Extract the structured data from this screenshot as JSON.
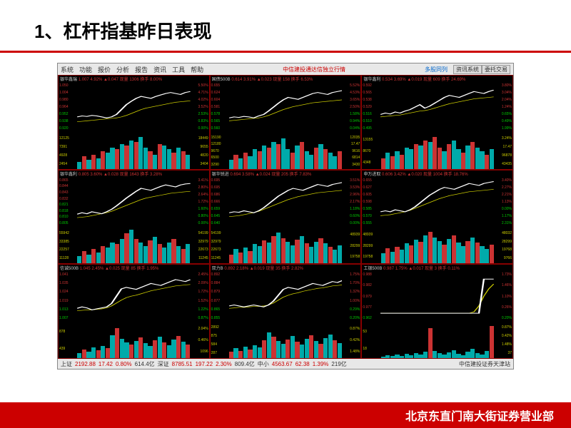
{
  "title": "1、杠杆指基昨日表现",
  "footer": "北京东直门南大街证券营业部",
  "menu": [
    "系统",
    "功能",
    "报价",
    "分析",
    "报告",
    "资讯",
    "工具",
    "帮助"
  ],
  "terminal_title": "中信建投通达信独立行情",
  "terminal_mode": "多股同列",
  "tabs": [
    "资讯系统",
    "委托交易"
  ],
  "station": "中信建投证券天津站",
  "status": [
    {
      "name": "上证",
      "val": "2192.88",
      "chg": "17.42",
      "pct": "0.80%",
      "vol": "614.4亿"
    },
    {
      "name": "深证",
      "val": "8785.51",
      "chg": "197.22",
      "pct": "2.30%",
      "vol": "809.4亿"
    },
    {
      "name": "中小",
      "val": "4563.67",
      "chg": "62.38",
      "pct": "1.39%",
      "vol": "219亿"
    }
  ],
  "colors": {
    "bg": "#000000",
    "grid_border": "#800000",
    "up": "#cc3333",
    "down": "#00cc00",
    "price_line": "#ffffff",
    "ma_line": "#cccc00",
    "vol_cyan": "#00aaaa",
    "vol_red": "#cc3333",
    "axis_text": "#cc3333",
    "vol_text": "#cccc00"
  },
  "charts": [
    {
      "name": "银华鑫瑞",
      "head": "银华鑫瑞 1.007 4.92% ▲0.047 现量 1306 换手 8.00%",
      "yleft": [
        "1.050",
        "1.004",
        "0.980",
        "0.964",
        "0.952",
        "0.938",
        "0.920"
      ],
      "yright": [
        "5.50%",
        "4.71%",
        "4.02%",
        "3.52%",
        "2.53%",
        "0.83%",
        "0.00%"
      ],
      "vol_left": [
        "12125",
        "7391",
        "4928",
        "2454"
      ],
      "vol_right": [
        "18449",
        "9655",
        "4820",
        "3404"
      ],
      "price": [
        30,
        32,
        31,
        33,
        32,
        30,
        28,
        30,
        35,
        45,
        55,
        62,
        68,
        72,
        70,
        68,
        72,
        75,
        78,
        80,
        78,
        76,
        80,
        82
      ],
      "ma": [
        20,
        21,
        22,
        23,
        24,
        25,
        26,
        27,
        28,
        30,
        33,
        37,
        41,
        45,
        48,
        50,
        52,
        54,
        56,
        58,
        60,
        61,
        62,
        63
      ],
      "vols": [
        20,
        35,
        25,
        40,
        30,
        50,
        45,
        60,
        55,
        70,
        65,
        80,
        75,
        90,
        60,
        50,
        40,
        70,
        65,
        55,
        45,
        60,
        50,
        40
      ],
      "vol_colors": [
        "c",
        "r",
        "c",
        "r",
        "c",
        "r",
        "c",
        "c",
        "r",
        "c",
        "r",
        "c",
        "r",
        "c",
        "c",
        "r",
        "c",
        "r",
        "c",
        "c",
        "r",
        "c",
        "r",
        "c"
      ]
    },
    {
      "name": "国债500B",
      "head": "国债500B 0.614 3.91% ▲0.023 现量 158 换手 6.53%",
      "yleft": [
        "0.655",
        "0.624",
        "0.604",
        "0.581",
        "0.578",
        "0.565",
        "0.560"
      ],
      "yright": [
        "5.52%",
        "4.53%",
        "3.65%",
        "2.50%",
        "1.58%",
        "0.94%",
        "0.04%"
      ],
      "vol_left": [
        "15190",
        "12180",
        "9670",
        "6500",
        "3290"
      ],
      "vol_right": [
        "12035",
        "17.47",
        "9616",
        "6814",
        "3430"
      ],
      "price": [
        28,
        30,
        29,
        31,
        30,
        28,
        32,
        35,
        42,
        50,
        58,
        65,
        70,
        68,
        66,
        70,
        74,
        78,
        80,
        78,
        76,
        80,
        82,
        84
      ],
      "ma": [
        22,
        23,
        24,
        25,
        26,
        27,
        28,
        30,
        33,
        37,
        41,
        45,
        48,
        51,
        53,
        55,
        57,
        59,
        60,
        61,
        62,
        63,
        64,
        65
      ],
      "vols": [
        25,
        40,
        30,
        45,
        35,
        55,
        50,
        65,
        60,
        75,
        70,
        85,
        55,
        45,
        65,
        75,
        50,
        40,
        60,
        70,
        55,
        45,
        35,
        50
      ],
      "vol_colors": [
        "c",
        "r",
        "c",
        "r",
        "c",
        "c",
        "r",
        "c",
        "r",
        "c",
        "r",
        "c",
        "c",
        "r",
        "c",
        "r",
        "c",
        "c",
        "r",
        "c",
        "r",
        "c",
        "c",
        "r"
      ]
    },
    {
      "name": "银华鑫利",
      "head": "银华鑫利 0.534 3.69% ▲0.019 现量 609 换手 24.69%",
      "yleft": [
        "0.592",
        "0.565",
        "0.538",
        "0.529",
        "0.516",
        "0.510",
        "0.495"
      ],
      "yright": [
        "3.80%",
        "3.04%",
        "2.04%",
        "1.24%",
        "0.65%",
        "0.49%",
        "1.99%"
      ],
      "vol_left": [
        "13155",
        "8670",
        "4348"
      ],
      "vol_right": [
        "3.24%",
        "17.47",
        "96878",
        "43435"
      ],
      "price": [
        35,
        38,
        36,
        40,
        38,
        42,
        45,
        50,
        55,
        48,
        52,
        58,
        64,
        70,
        74,
        72,
        70,
        74,
        78,
        82,
        80,
        78,
        82,
        85
      ],
      "ma": [
        30,
        31,
        32,
        33,
        34,
        36,
        38,
        40,
        42,
        43,
        45,
        48,
        51,
        54,
        57,
        59,
        61,
        63,
        65,
        67,
        68,
        69,
        70,
        71
      ],
      "vols": [
        30,
        45,
        35,
        50,
        40,
        60,
        55,
        70,
        65,
        80,
        75,
        90,
        60,
        50,
        70,
        80,
        55,
        45,
        65,
        75,
        60,
        50,
        40,
        55
      ],
      "vol_colors": [
        "r",
        "c",
        "r",
        "c",
        "r",
        "c",
        "c",
        "r",
        "c",
        "r",
        "c",
        "r",
        "r",
        "c",
        "r",
        "c",
        "c",
        "r",
        "c",
        "r",
        "c",
        "c",
        "r",
        "c"
      ]
    },
    {
      "name": "银华鑫利",
      "head": "银华鑫利 0.805 3.60% ▲0.028 现量 1643 换手 3.28%",
      "yleft": [
        "0.865",
        "0.844",
        "0.843",
        "0.832",
        "0.821",
        "0.818",
        "0.810",
        "0.805"
      ],
      "yright": [
        "3.41%",
        "2.80%",
        "2.64%",
        "1.72%",
        "1.60%",
        "0.80%",
        "0.00%"
      ],
      "vol_left": [
        "55942",
        "33385",
        "22257",
        "11128"
      ],
      "vol_right": [
        "54199",
        "32979",
        "22673",
        "11245"
      ],
      "price": [
        25,
        28,
        26,
        30,
        28,
        26,
        30,
        35,
        42,
        50,
        58,
        65,
        72,
        78,
        76,
        74,
        78,
        82,
        85,
        83,
        81,
        85,
        87,
        88
      ],
      "ma": [
        18,
        19,
        20,
        22,
        24,
        26,
        28,
        31,
        35,
        39,
        43,
        47,
        51,
        55,
        58,
        60,
        62,
        64,
        66,
        68,
        69,
        70,
        71,
        72
      ],
      "vols": [
        20,
        35,
        25,
        40,
        30,
        50,
        45,
        60,
        55,
        70,
        85,
        95,
        70,
        60,
        50,
        65,
        75,
        55,
        45,
        60,
        70,
        50,
        40,
        55
      ],
      "vol_colors": [
        "c",
        "r",
        "c",
        "r",
        "c",
        "r",
        "c",
        "c",
        "r",
        "c",
        "r",
        "c",
        "r",
        "c",
        "c",
        "r",
        "c",
        "r",
        "c",
        "c",
        "r",
        "c",
        "r",
        "c"
      ]
    },
    {
      "name": "银华锐进",
      "head": "银华锐进 0.694 3.58% ▲0.024 现量 205 换手 7.83%",
      "yleft": [
        "0.695",
        "0.695",
        "0.686",
        "0.666",
        "0.659",
        "0.645",
        "0.640"
      ],
      "yright": [
        "3.51%",
        "3.53%",
        "2.96%",
        "2.17%",
        "1.18%",
        "0.60%",
        "0.00%"
      ],
      "vol_left": [
        "54199",
        "32979",
        "22673",
        "11245"
      ],
      "vol_right": [
        "48939",
        "28299",
        "19758"
      ],
      "price": [
        28,
        30,
        29,
        32,
        30,
        28,
        32,
        38,
        46,
        54,
        62,
        68,
        74,
        78,
        76,
        74,
        78,
        82,
        86,
        84,
        82,
        86,
        88,
        90
      ],
      "ma": [
        20,
        21,
        22,
        24,
        26,
        28,
        31,
        35,
        39,
        43,
        47,
        51,
        55,
        58,
        61,
        63,
        65,
        67,
        69,
        70,
        71,
        72,
        73,
        74
      ],
      "vols": [
        25,
        40,
        30,
        45,
        35,
        55,
        50,
        65,
        60,
        78,
        88,
        72,
        62,
        52,
        68,
        78,
        58,
        48,
        62,
        72,
        58,
        48,
        38,
        52
      ],
      "vol_colors": [
        "r",
        "c",
        "r",
        "c",
        "r",
        "c",
        "c",
        "r",
        "c",
        "r",
        "c",
        "r",
        "c",
        "c",
        "r",
        "c",
        "r",
        "c",
        "c",
        "r",
        "c",
        "r",
        "c",
        "c"
      ]
    },
    {
      "name": "申万进取",
      "head": "申万进取 0.606 3.42% ▲0.020 现量 1004 换手 18.76%",
      "yleft": [
        "0.655",
        "0.627",
        "0.605",
        "0.598",
        "0.585",
        "0.570",
        "0.555"
      ],
      "yright": [
        "3.40%",
        "2.27%",
        "2.21%",
        "1.13%",
        "0.00%",
        "1.17%",
        "2.31%"
      ],
      "vol_left": [
        "48939",
        "28299",
        "19758"
      ],
      "vol_right": [
        "48032",
        "28299",
        "19768",
        "9766"
      ],
      "price": [
        30,
        32,
        30,
        34,
        32,
        30,
        34,
        40,
        48,
        56,
        64,
        70,
        76,
        80,
        78,
        76,
        80,
        84,
        88,
        86,
        84,
        88,
        90,
        92
      ],
      "ma": [
        22,
        23,
        24,
        26,
        28,
        30,
        33,
        37,
        41,
        45,
        49,
        53,
        57,
        60,
        63,
        65,
        67,
        69,
        71,
        72,
        73,
        74,
        75,
        76
      ],
      "vols": [
        28,
        42,
        32,
        48,
        38,
        58,
        52,
        68,
        62,
        80,
        90,
        74,
        64,
        54,
        70,
        80,
        60,
        50,
        64,
        74,
        60,
        50,
        40,
        54
      ],
      "vol_colors": [
        "c",
        "r",
        "c",
        "r",
        "c",
        "c",
        "r",
        "c",
        "r",
        "c",
        "r",
        "c",
        "c",
        "r",
        "c",
        "r",
        "c",
        "c",
        "r",
        "c",
        "r",
        "c",
        "c",
        "r"
      ]
    },
    {
      "name": "信诚500B",
      "head": "信诚500B 1.045 2.45% ▲0.025 现量 85 换手 1.95%",
      "yleft": [
        "1.041",
        "1.035",
        "1.024",
        "1.019",
        "1.013",
        "1.007"
      ],
      "yright": [
        "2.45%",
        "2.09%",
        "1.72%",
        "1.52%",
        "1.22%",
        "0.87%"
      ],
      "vol_left": [
        "878",
        "439"
      ],
      "vol_right": [
        "2.04%",
        "0.46%",
        "1096"
      ],
      "price": [
        25,
        28,
        26,
        22,
        24,
        26,
        28,
        35,
        50,
        65,
        68,
        66,
        64,
        68,
        72,
        76,
        74,
        72,
        76,
        80,
        84,
        82,
        80,
        84
      ],
      "ma": [
        20,
        21,
        22,
        22,
        23,
        24,
        26,
        30,
        36,
        42,
        47,
        50,
        52,
        55,
        58,
        61,
        63,
        65,
        67,
        69,
        71,
        72,
        73,
        74
      ],
      "vols": [
        15,
        25,
        18,
        30,
        22,
        35,
        28,
        65,
        85,
        55,
        45,
        38,
        48,
        58,
        42,
        35,
        50,
        60,
        44,
        36,
        52,
        62,
        46,
        38
      ],
      "vol_colors": [
        "c",
        "r",
        "c",
        "c",
        "r",
        "c",
        "r",
        "c",
        "r",
        "c",
        "c",
        "r",
        "c",
        "r",
        "c",
        "c",
        "r",
        "c",
        "r",
        "c",
        "c",
        "r",
        "c",
        "r"
      ]
    },
    {
      "name": "双力B",
      "head": "双力B 0.892 2.18% ▲0.019 现量 35 换手 2.82%",
      "yleft": [
        "0.892",
        "0.884",
        "0.879",
        "0.877",
        "0.865",
        "0.855"
      ],
      "yright": [
        "1.75%",
        "1.70%",
        "1.32%",
        "1.00%",
        "0.29%",
        "0.20%"
      ],
      "vol_left": [
        "2892",
        "875",
        "584",
        "287"
      ],
      "vol_right": [
        "0.87%",
        "0.42%",
        "1.48%"
      ],
      "price": [
        30,
        32,
        30,
        28,
        30,
        32,
        30,
        28,
        32,
        40,
        52,
        64,
        68,
        66,
        64,
        68,
        72,
        76,
        74,
        72,
        76,
        80,
        78,
        82
      ],
      "ma": [
        25,
        26,
        27,
        27,
        28,
        29,
        29,
        30,
        32,
        36,
        42,
        48,
        52,
        55,
        57,
        60,
        62,
        64,
        66,
        67,
        69,
        71,
        72,
        73
      ],
      "vols": [
        18,
        28,
        20,
        32,
        24,
        36,
        30,
        50,
        72,
        60,
        48,
        40,
        52,
        62,
        46,
        38,
        54,
        64,
        48,
        40,
        56,
        66,
        50,
        42
      ],
      "vol_colors": [
        "r",
        "c",
        "r",
        "c",
        "r",
        "c",
        "c",
        "r",
        "c",
        "r",
        "c",
        "c",
        "r",
        "c",
        "r",
        "c",
        "c",
        "r",
        "c",
        "r",
        "c",
        "c",
        "r",
        "c"
      ]
    },
    {
      "name": "工银500B",
      "head": "工银500B 0.987 1.75% ▲0.017 现量 3 换手 0.11%",
      "yleft": [
        "0.988",
        "0.982",
        "0.979",
        "0.977",
        "0.962"
      ],
      "yright": [
        "1.73%",
        "1.46%",
        "1.10%",
        "0.26%",
        "0.20%"
      ],
      "vol_left": [
        "53",
        "18"
      ],
      "vol_right": [
        "0.87%",
        "0.42%",
        "1.48%",
        "37"
      ],
      "price": [
        15,
        15,
        15,
        15,
        15,
        15,
        15,
        15,
        15,
        15,
        15,
        15,
        15,
        15,
        15,
        15,
        15,
        15,
        15,
        15,
        15,
        85,
        85,
        85
      ],
      "ma": [
        15,
        15,
        15,
        15,
        15,
        15,
        15,
        15,
        15,
        15,
        15,
        15,
        15,
        15,
        15,
        15,
        15,
        15,
        15,
        18,
        30,
        50,
        65,
        75
      ],
      "vols": [
        5,
        8,
        6,
        10,
        7,
        12,
        9,
        15,
        11,
        18,
        85,
        20,
        14,
        10,
        16,
        22,
        12,
        8,
        18,
        26,
        14,
        10,
        20,
        90
      ],
      "vol_colors": [
        "c",
        "c",
        "c",
        "c",
        "c",
        "c",
        "c",
        "c",
        "c",
        "c",
        "r",
        "c",
        "c",
        "c",
        "c",
        "c",
        "c",
        "c",
        "c",
        "c",
        "c",
        "c",
        "c",
        "r"
      ]
    }
  ]
}
